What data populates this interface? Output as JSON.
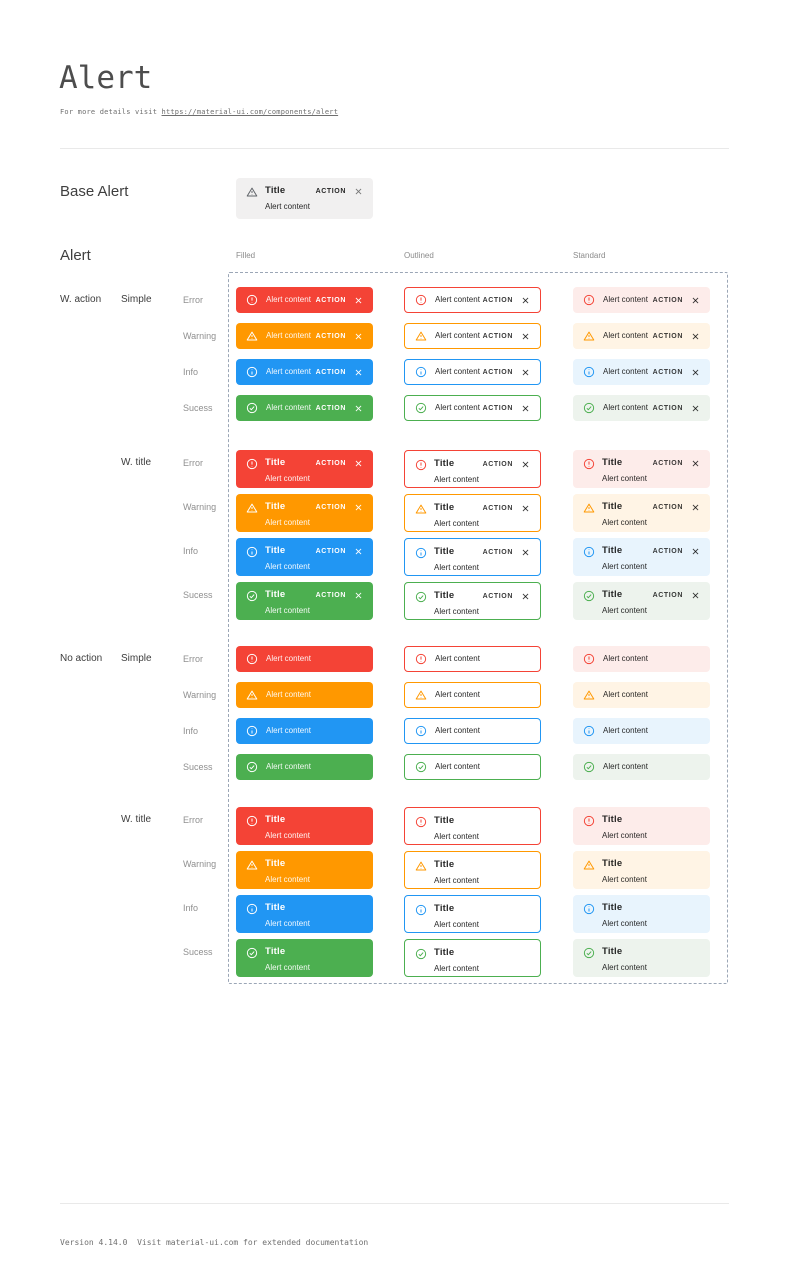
{
  "page": {
    "title": "Alert",
    "subtitle_prefix": "For more details visit ",
    "subtitle_link": "https://material-ui.com/components/alert",
    "footer_text": "Version 4.14.0  Visit material-ui.com for extended documentation"
  },
  "base_section": {
    "label": "Base Alert"
  },
  "alert_section": {
    "label": "Alert",
    "columns": [
      "Filled",
      "Outlined",
      "Standard"
    ]
  },
  "alert_text": {
    "title": "Title",
    "content": "Alert content",
    "action": "ACTION"
  },
  "severities": [
    {
      "key": "error",
      "label": "Error"
    },
    {
      "key": "warning",
      "label": "Warning"
    },
    {
      "key": "info",
      "label": "Info"
    },
    {
      "key": "success",
      "label": "Sucess"
    }
  ],
  "grid": {
    "variants": [
      "filled",
      "outlined",
      "standard"
    ],
    "blocks": [
      {
        "group_label": "W. action",
        "type_label": "Simple",
        "with_title": false,
        "with_action": true
      },
      {
        "group_label": "",
        "type_label": "W. title",
        "with_title": true,
        "with_action": true
      },
      {
        "group_label": "No action",
        "type_label": "Simple",
        "with_title": false,
        "with_action": false
      },
      {
        "group_label": "",
        "type_label": "W. title",
        "with_title": true,
        "with_action": false
      }
    ]
  },
  "colors": {
    "error": {
      "main": "#f44336",
      "standard_bg": "#fdecea"
    },
    "warning": {
      "main": "#ff9800",
      "standard_bg": "#fff4e5"
    },
    "info": {
      "main": "#2196f3",
      "standard_bg": "#e8f4fd"
    },
    "success": {
      "main": "#4caf50",
      "standard_bg": "#edf3ed"
    },
    "dashed_border": "#9ba6b6",
    "base_alert_bg": "#f1f0f0"
  }
}
